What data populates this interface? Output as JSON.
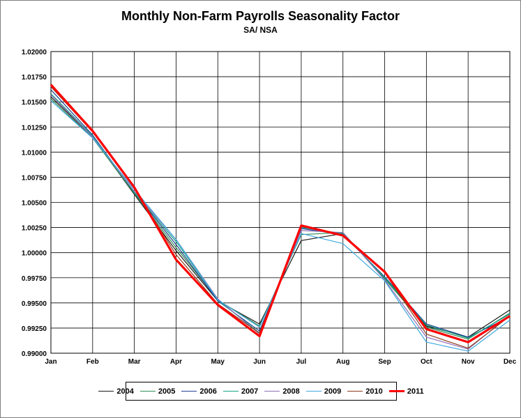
{
  "chart_data": {
    "type": "line",
    "title": "Monthly Non-Farm Payrolls Seasonality Factor",
    "subtitle": "SA/ NSA",
    "xlabel": "",
    "ylabel": "",
    "categories": [
      "Jan",
      "Feb",
      "Mar",
      "Apr",
      "May",
      "Jun",
      "Jul",
      "Aug",
      "Sep",
      "Oct",
      "Nov",
      "Dec"
    ],
    "ylim": [
      0.99,
      1.02
    ],
    "yticks": [
      "0.99000",
      "0.99250",
      "0.99500",
      "0.99750",
      "1.00000",
      "1.00250",
      "1.00500",
      "1.00750",
      "1.01000",
      "1.01250",
      "1.01500",
      "1.01750",
      "1.02000"
    ],
    "grid": true,
    "legend": "bottom",
    "series": [
      {
        "name": "2004",
        "color": "#1a1a1a",
        "width": 1.2,
        "values": [
          1.0155,
          1.0115,
          1.0058,
          1.0002,
          0.9952,
          0.9929,
          1.0012,
          1.0019,
          0.9975,
          0.9927,
          0.9916,
          0.9943
        ]
      },
      {
        "name": "2005",
        "color": "#2e8b57",
        "width": 1.2,
        "values": [
          1.0153,
          1.0114,
          1.0059,
          1.0005,
          0.9953,
          0.9927,
          1.0018,
          1.002,
          0.9974,
          0.9926,
          0.9914,
          0.994
        ]
      },
      {
        "name": "2006",
        "color": "#1f3f8f",
        "width": 1.2,
        "values": [
          1.0162,
          1.0117,
          1.006,
          1.0008,
          0.9952,
          0.9922,
          1.0024,
          1.0018,
          0.9976,
          0.9929,
          0.9916,
          0.9936
        ]
      },
      {
        "name": "2007",
        "color": "#17a589",
        "width": 1.2,
        "values": [
          1.0158,
          1.0116,
          1.006,
          1.0011,
          0.9953,
          0.992,
          1.0025,
          1.0019,
          0.9975,
          0.9928,
          0.9915,
          0.9939
        ]
      },
      {
        "name": "2008",
        "color": "#8e6fb5",
        "width": 1.2,
        "values": [
          1.0157,
          1.0115,
          1.0061,
          1.0013,
          0.9954,
          0.9919,
          1.0022,
          1.002,
          0.9973,
          0.9916,
          0.9904,
          0.9938
        ]
      },
      {
        "name": "2009",
        "color": "#3fa9e0",
        "width": 1.2,
        "values": [
          1.0151,
          1.0114,
          1.0063,
          1.0013,
          0.9953,
          0.9926,
          1.0019,
          1.0009,
          0.9972,
          0.9911,
          0.9902,
          0.9933
        ]
      },
      {
        "name": "2010",
        "color": "#8b3a1a",
        "width": 1.2,
        "values": [
          1.0165,
          1.012,
          1.0064,
          0.9998,
          0.9949,
          0.992,
          1.0026,
          1.0017,
          0.998,
          0.9919,
          0.9905,
          0.9937
        ]
      },
      {
        "name": "2011",
        "color": "#ff0000",
        "width": 3.2,
        "values": [
          1.0167,
          1.0121,
          1.0065,
          0.9993,
          0.9948,
          0.9917,
          1.0027,
          1.0017,
          0.9981,
          0.9924,
          0.9911,
          0.9937
        ]
      }
    ]
  }
}
